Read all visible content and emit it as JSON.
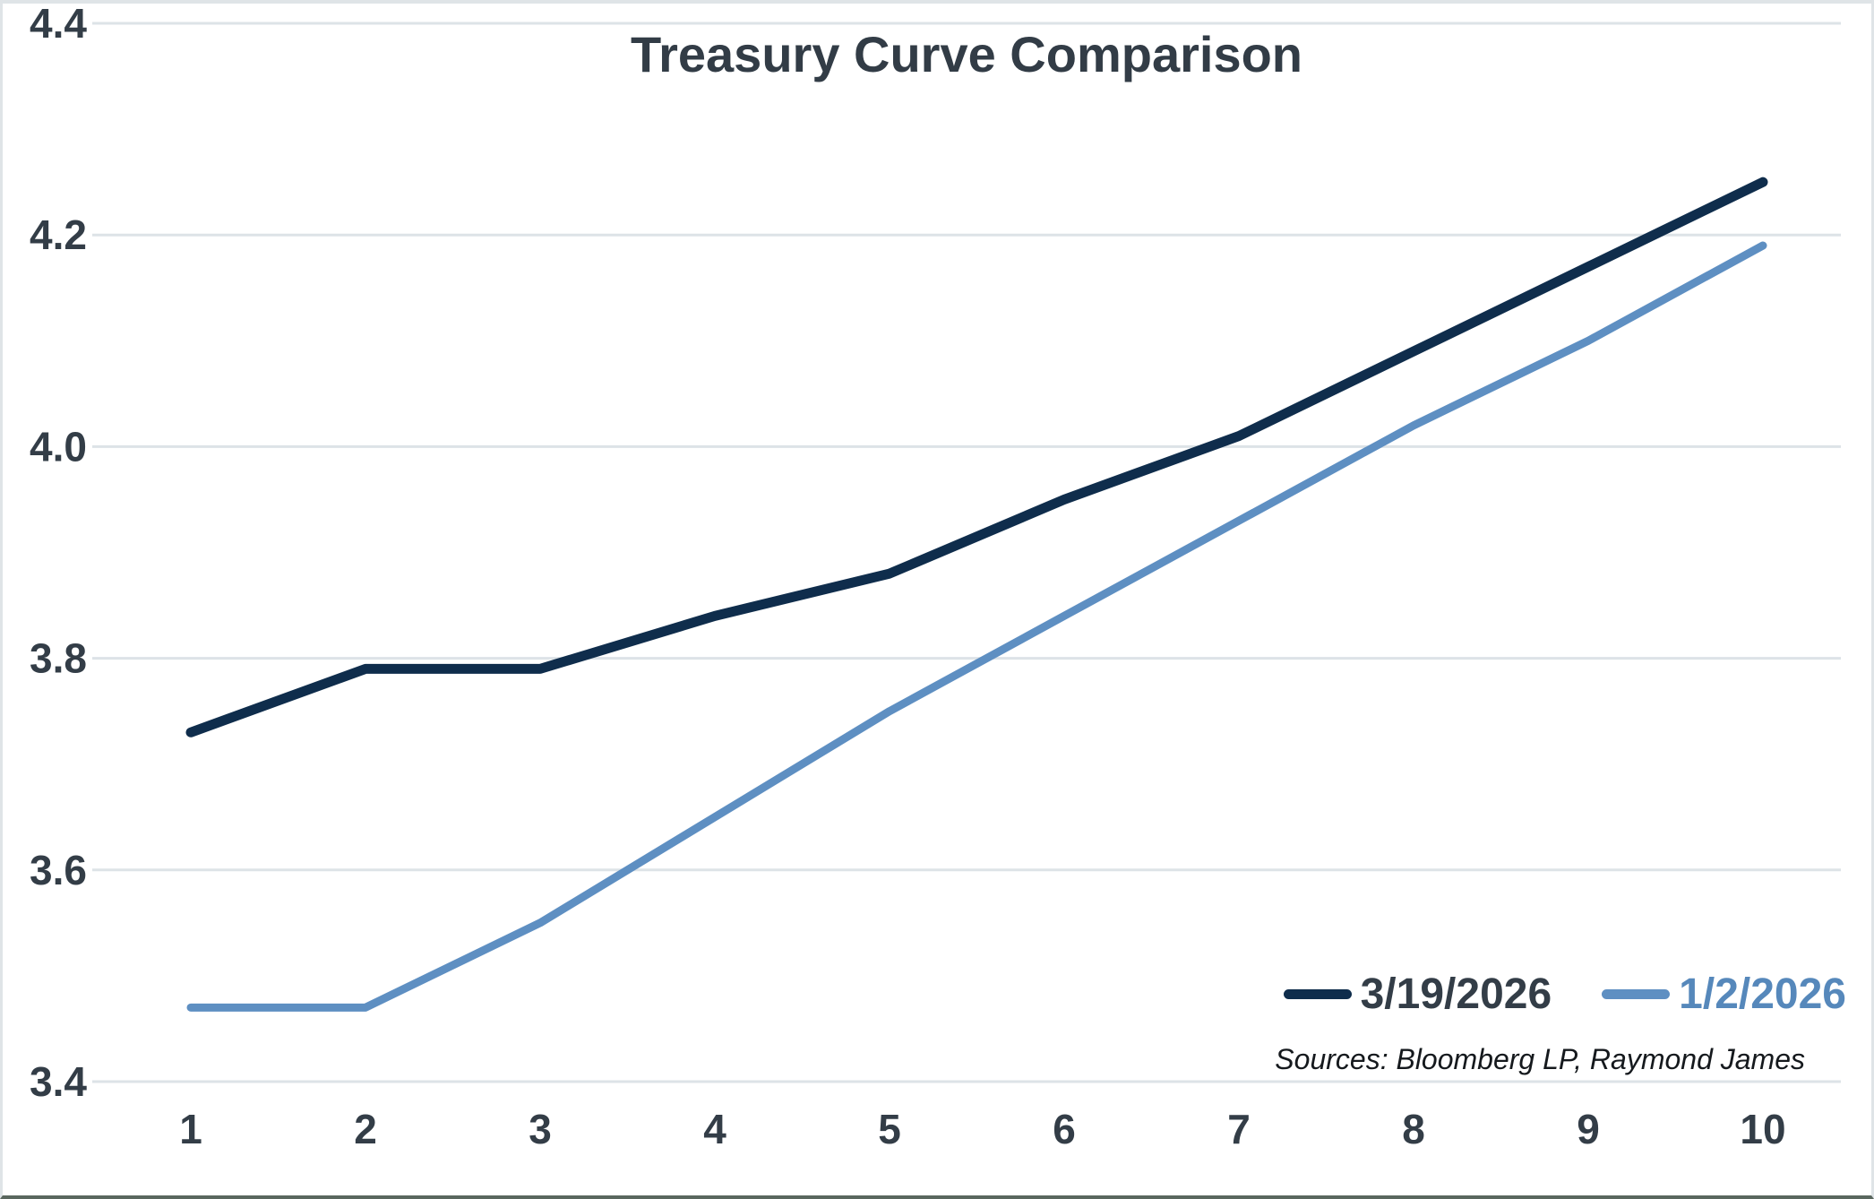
{
  "title": "Treasury Curve Comparison",
  "source_note": "Sources: Bloomberg LP, Raymond James",
  "colors": {
    "title_text": "#323c46",
    "axis_text": "#333d47",
    "gridline": "#dde3e7",
    "background": "#ffffff",
    "series_dark": "#0f2d4c",
    "series_blue": "#5e8fc2",
    "legend_label_dark": "#333d47",
    "legend_label_blue": "#5688bb"
  },
  "chart_data": {
    "type": "line",
    "title": "Treasury Curve Comparison",
    "categories": [
      1,
      2,
      3,
      4,
      5,
      6,
      7,
      8,
      9,
      10
    ],
    "series": [
      {
        "name": "3/19/2026",
        "color": "#0f2d4c",
        "stroke_width": 11,
        "values": [
          3.73,
          3.79,
          3.79,
          3.84,
          3.88,
          3.95,
          4.01,
          4.09,
          4.17,
          4.25
        ]
      },
      {
        "name": "1/2/2026",
        "color": "#5e8fc2",
        "stroke_width": 9,
        "values": [
          3.47,
          3.47,
          3.55,
          3.65,
          3.75,
          3.84,
          3.93,
          4.02,
          4.1,
          4.19
        ]
      }
    ],
    "xlabel": "",
    "ylabel": "",
    "ylim": [
      3.4,
      4.4
    ],
    "yticks": [
      3.4,
      3.6,
      3.8,
      4.0,
      4.2,
      4.4
    ],
    "ytick_labels": [
      "3.4",
      "3.6",
      "3.8",
      "4.0",
      "4.2",
      "4.4"
    ],
    "grid": "horizontal",
    "legend_position": "bottom-right",
    "annotation": "Sources: Bloomberg LP, Raymond James"
  },
  "legend": {
    "items": [
      {
        "label": "3/19/2026"
      },
      {
        "label": "1/2/2026"
      }
    ]
  }
}
